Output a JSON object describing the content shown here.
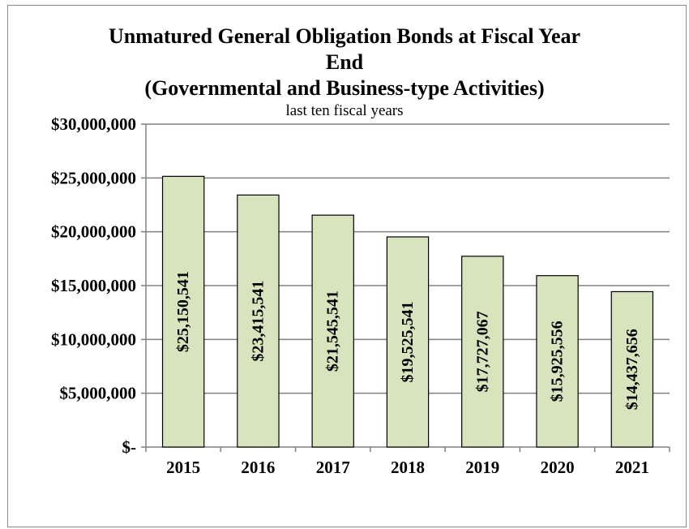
{
  "chart_data": {
    "type": "bar",
    "title_lines": [
      "Unmatured General Obligation Bonds at Fiscal Year",
      "End",
      "(Governmental and Business-type Activities)"
    ],
    "subtitle": "last ten fiscal years",
    "categories": [
      "2015",
      "2016",
      "2017",
      "2018",
      "2019",
      "2020",
      "2021"
    ],
    "values": [
      25150541,
      23415541,
      21545541,
      19525541,
      17727067,
      15925556,
      14437656
    ],
    "data_labels": [
      "$25,150,541",
      "$23,415,541",
      "$21,545,541",
      "$19,525,541",
      "$17,727,067",
      "$15,925,556",
      "$14,437,656"
    ],
    "y_ticks": [
      0,
      5000000,
      10000000,
      15000000,
      20000000,
      25000000,
      30000000
    ],
    "y_tick_labels": [
      "$-",
      "$5,000,000",
      "$10,000,000",
      "$15,000,000",
      "$20,000,000",
      "$25,000,000",
      "$30,000,000"
    ],
    "ylim": [
      0,
      30000000
    ],
    "grid": true,
    "legend": "none",
    "colors": {
      "bar_fill": "#d7e4bd",
      "bar_stroke": "#000000",
      "grid": "#808080"
    }
  }
}
